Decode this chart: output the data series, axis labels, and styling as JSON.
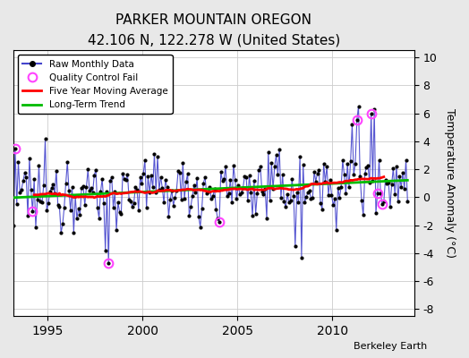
{
  "title": "PARKER MOUNTAIN OREGON",
  "subtitle": "42.106 N, 122.278 W (United States)",
  "ylabel": "Temperature Anomaly (°C)",
  "attribution": "Berkeley Earth",
  "xlim": [
    1993.2,
    2014.3
  ],
  "ylim": [
    -8.5,
    10.5
  ],
  "yticks": [
    -8,
    -6,
    -4,
    -2,
    0,
    2,
    4,
    6,
    8,
    10
  ],
  "xticks": [
    1995,
    2000,
    2005,
    2010
  ],
  "bg_color": "#e8e8e8",
  "plot_bg": "#ffffff",
  "raw_line_color": "#4444cc",
  "raw_marker_color": "#000000",
  "qc_color": "#ff44ff",
  "ma_color": "#ff0000",
  "trend_color": "#00bb00",
  "seed": 12345
}
